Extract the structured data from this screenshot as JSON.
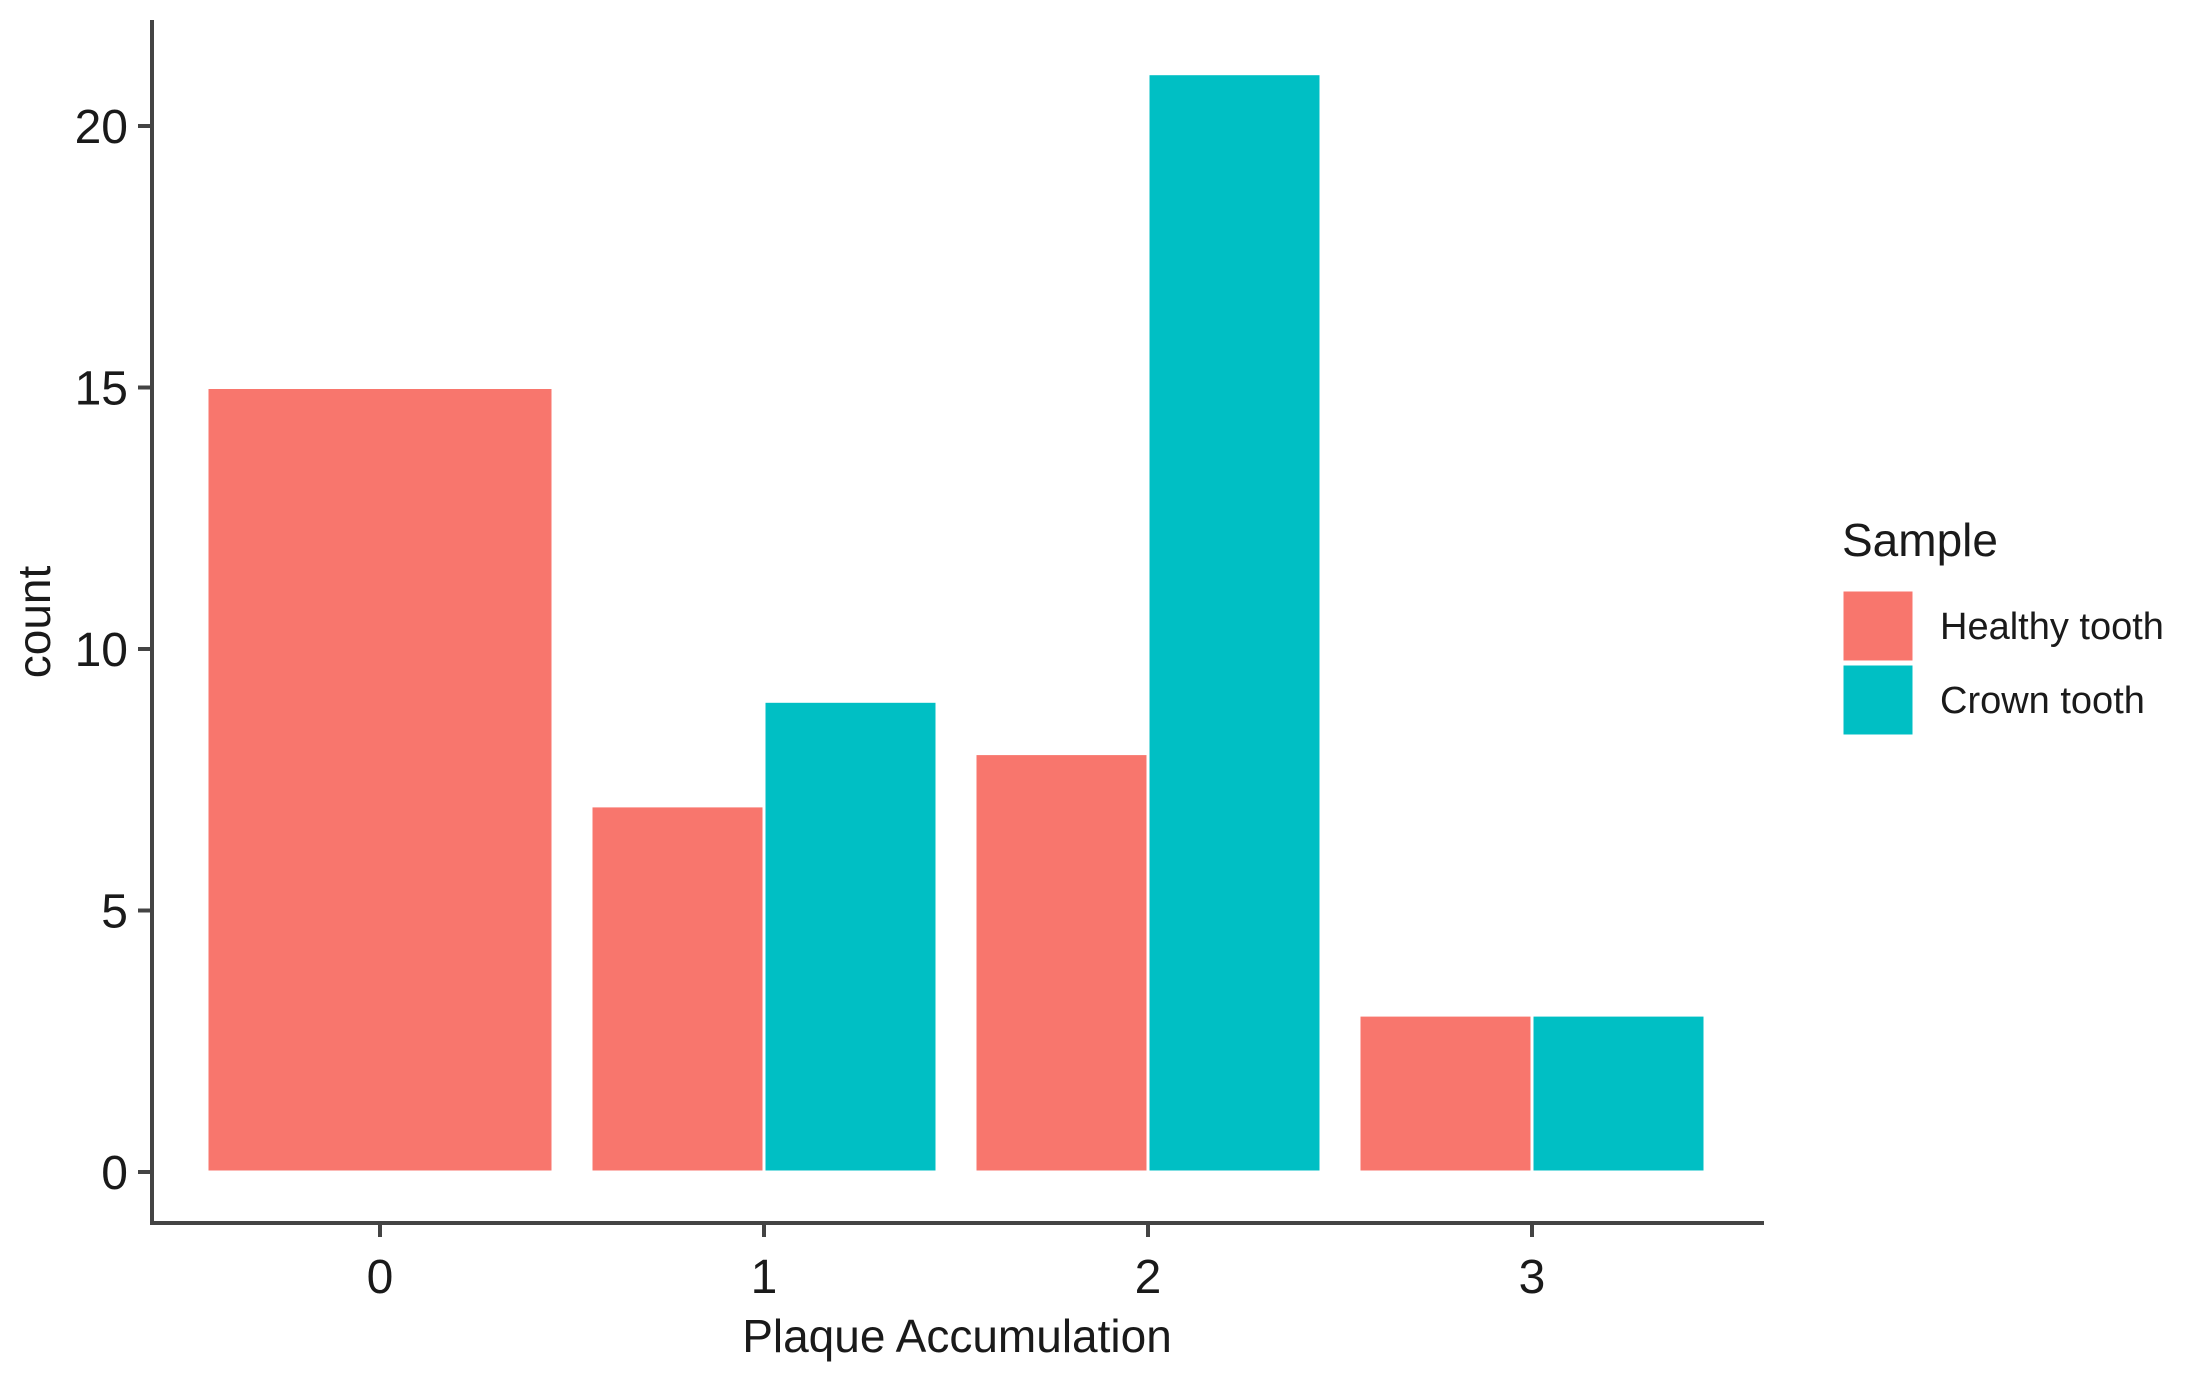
{
  "chart_data": {
    "type": "bar",
    "layout": "dodge",
    "categories": [
      "0",
      "1",
      "2",
      "3"
    ],
    "series": [
      {
        "name": "Healthy tooth",
        "color": "#F8766D",
        "values": [
          15,
          7,
          8,
          3
        ]
      },
      {
        "name": "Crown tooth",
        "color": "#00BFC4",
        "values": [
          0,
          9,
          21,
          3
        ]
      }
    ],
    "xlabel": "Plaque Accumulation",
    "ylabel": "count",
    "ylim": [
      -1,
      22
    ],
    "yticks": [
      0,
      5,
      10,
      15,
      20
    ],
    "grid": false,
    "legend": {
      "title": "Sample",
      "position": "right"
    }
  }
}
